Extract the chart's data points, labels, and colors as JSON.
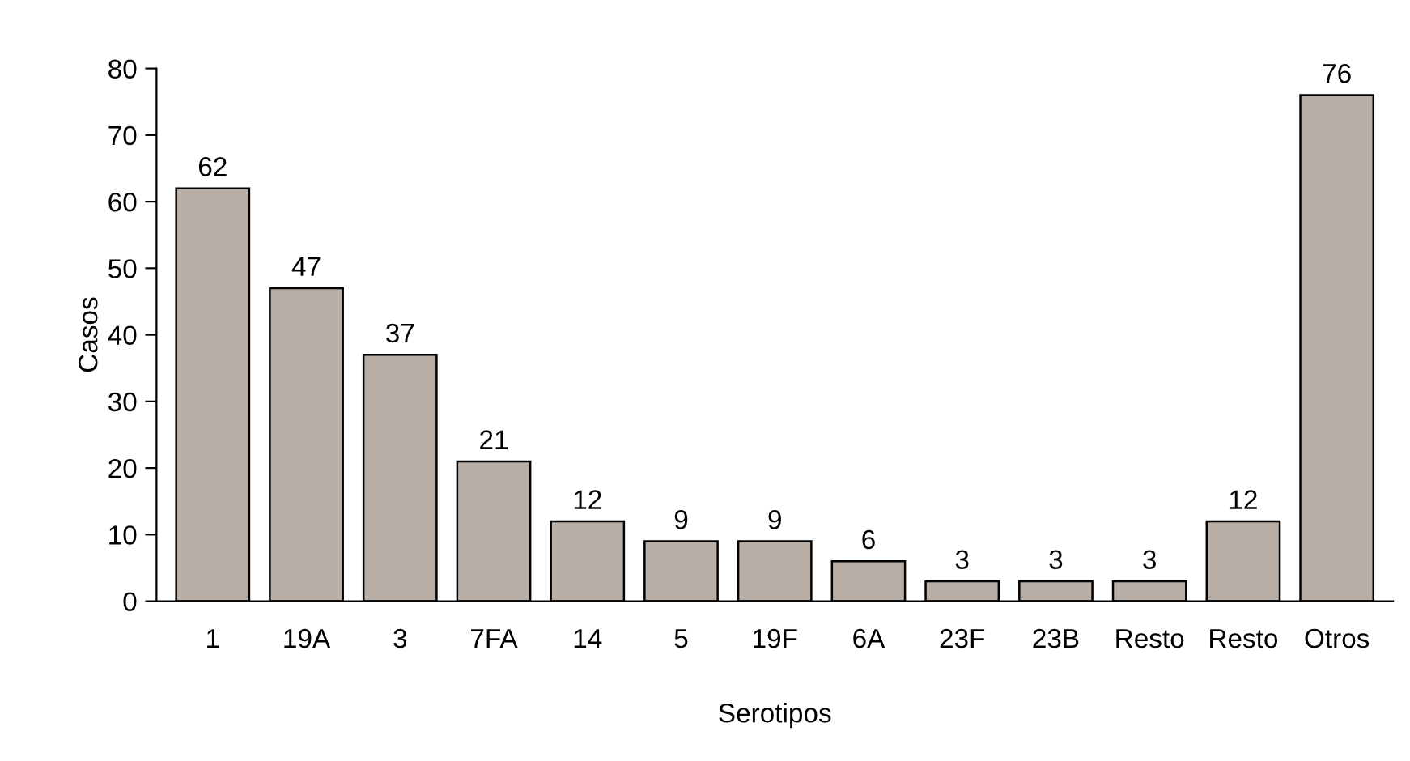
{
  "chart_data": {
    "type": "bar",
    "xlabel": "Serotipos",
    "ylabel": "Casos",
    "categories": [
      "1",
      "19A",
      "3",
      "7FA",
      "14",
      "5",
      "19F",
      "6A",
      "23F",
      "23B",
      "Resto",
      "Resto",
      "Otros"
    ],
    "values": [
      62,
      47,
      37,
      21,
      12,
      9,
      9,
      6,
      3,
      3,
      3,
      12,
      76
    ],
    "color": "#b9aea6",
    "ylim": [
      0,
      80
    ],
    "yticks": [
      0,
      10,
      20,
      30,
      40,
      50,
      60,
      70,
      80
    ],
    "grid": false,
    "data_labels": true
  }
}
